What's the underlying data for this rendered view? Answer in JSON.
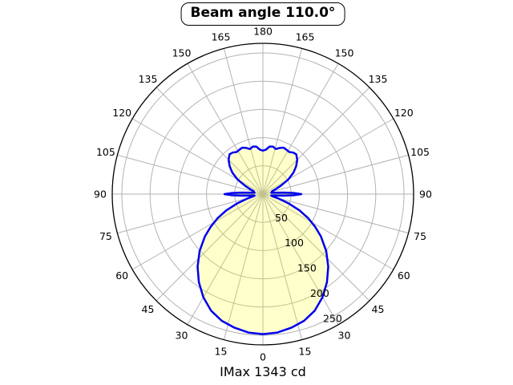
{
  "title": "Beam angle 110.0°",
  "footer": "IMax 1343 cd",
  "chart_data": {
    "type": "polar-line",
    "title": "Beam angle 110.0°",
    "annotation": "IMax 1343 cd",
    "beam_angle_deg": 110.0,
    "imax_cd": 1343,
    "angle_ticks_deg": [
      0,
      15,
      30,
      45,
      60,
      75,
      90,
      105,
      120,
      135,
      150,
      165,
      180
    ],
    "angle_tick_labels": [
      "0",
      "15",
      "30",
      "45",
      "60",
      "75",
      "90",
      "105",
      "120",
      "135",
      "150",
      "165",
      "180"
    ],
    "angles_mirrored_left_right": true,
    "radial_ticks": [
      50,
      100,
      150,
      200,
      250
    ],
    "radial_tick_labels": [
      "50",
      "100",
      "150",
      "200",
      "250"
    ],
    "r_axis_max": 267,
    "grid": true,
    "theta_zero": "down",
    "curve": {
      "name": "luminous-intensity-distribution",
      "samples_theta_r": [
        [
          0,
          248
        ],
        [
          6,
          246.5
        ],
        [
          12,
          242
        ],
        [
          18,
          236
        ],
        [
          24,
          226
        ],
        [
          30,
          211
        ],
        [
          36,
          193
        ],
        [
          42,
          173
        ],
        [
          48,
          151
        ],
        [
          54,
          127
        ],
        [
          58,
          109
        ],
        [
          62,
          91
        ],
        [
          66,
          71
        ],
        [
          70,
          49
        ],
        [
          74,
          29
        ],
        [
          77,
          17
        ],
        [
          80,
          15
        ],
        [
          83,
          20
        ],
        [
          86,
          38
        ],
        [
          88,
          55
        ],
        [
          90,
          68
        ],
        [
          92,
          55
        ],
        [
          94,
          38
        ],
        [
          97,
          20
        ],
        [
          100,
          15
        ],
        [
          103,
          17
        ],
        [
          107,
          17
        ],
        [
          111,
          24
        ],
        [
          115,
          35
        ],
        [
          120,
          52
        ],
        [
          125,
          66
        ],
        [
          130,
          77
        ],
        [
          135,
          86
        ],
        [
          140,
          92
        ],
        [
          144,
          91
        ],
        [
          148,
          88
        ],
        [
          152,
          89
        ],
        [
          156,
          90
        ],
        [
          160,
          87
        ],
        [
          164,
          83
        ],
        [
          168,
          86
        ],
        [
          172,
          85
        ],
        [
          176,
          79
        ],
        [
          180,
          77
        ]
      ]
    },
    "colors": {
      "curve": "#0000ee",
      "fill": "rgba(255,255,0,0.20)",
      "grid": "#b3b3b3",
      "spine": "#000000",
      "text": "#000000",
      "background": "#ffffff"
    }
  }
}
